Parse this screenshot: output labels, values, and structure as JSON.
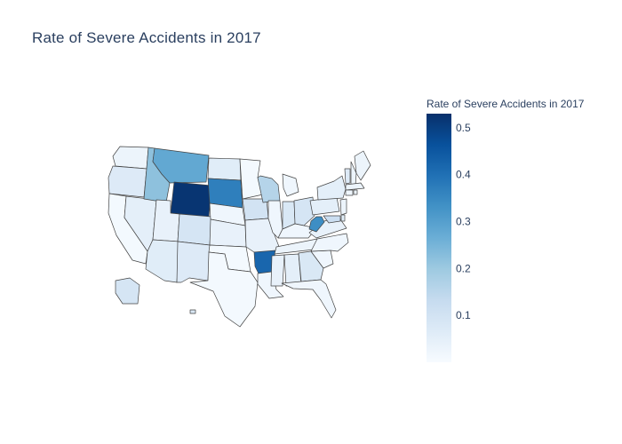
{
  "chart_data": {
    "type": "choropleth",
    "title": "Rate of Severe Accidents in 2017",
    "location_mode": "USA-states",
    "scope": "usa",
    "colorscale": "Blues",
    "colorbar": {
      "title": "Rate of Severe Accidents in 2017",
      "range": [
        0.0,
        0.53
      ],
      "tick_values": [
        0.1,
        0.2,
        0.3,
        0.4,
        0.5
      ],
      "tick_labels": [
        "0.1",
        "0.2",
        "0.3",
        "0.4",
        "0.5"
      ],
      "stops": [
        "#f7fbff",
        "#deebf7",
        "#c6dbef",
        "#9ecae1",
        "#6baed6",
        "#4292c6",
        "#2171b5",
        "#08519c",
        "#08306b"
      ]
    },
    "states": [
      {
        "state": "WA",
        "value": 0.03
      },
      {
        "state": "OR",
        "value": 0.07
      },
      {
        "state": "CA",
        "value": 0.01
      },
      {
        "state": "NV",
        "value": 0.05
      },
      {
        "state": "ID",
        "value": 0.22
      },
      {
        "state": "MT",
        "value": 0.28
      },
      {
        "state": "WY",
        "value": 0.52
      },
      {
        "state": "UT",
        "value": 0.04
      },
      {
        "state": "AZ",
        "value": 0.06
      },
      {
        "state": "CO",
        "value": 0.09
      },
      {
        "state": "NM",
        "value": 0.07
      },
      {
        "state": "ND",
        "value": 0.06
      },
      {
        "state": "SD",
        "value": 0.37
      },
      {
        "state": "NE",
        "value": 0.02
      },
      {
        "state": "KS",
        "value": 0.04
      },
      {
        "state": "OK",
        "value": 0.01
      },
      {
        "state": "TX",
        "value": 0.01
      },
      {
        "state": "MN",
        "value": 0.01
      },
      {
        "state": "IA",
        "value": 0.1
      },
      {
        "state": "MO",
        "value": 0.04
      },
      {
        "state": "AR",
        "value": 0.42
      },
      {
        "state": "LA",
        "value": 0.02
      },
      {
        "state": "WI",
        "value": 0.16
      },
      {
        "state": "IL",
        "value": 0.02
      },
      {
        "state": "MI",
        "value": 0.02
      },
      {
        "state": "IN",
        "value": 0.08
      },
      {
        "state": "OH",
        "value": 0.09
      },
      {
        "state": "KY",
        "value": 0.02
      },
      {
        "state": "TN",
        "value": 0.03
      },
      {
        "state": "MS",
        "value": 0.04
      },
      {
        "state": "AL",
        "value": 0.05
      },
      {
        "state": "GA",
        "value": 0.08
      },
      {
        "state": "FL",
        "value": 0.02
      },
      {
        "state": "SC",
        "value": 0.02
      },
      {
        "state": "NC",
        "value": 0.02
      },
      {
        "state": "VA",
        "value": 0.04
      },
      {
        "state": "WV",
        "value": 0.34
      },
      {
        "state": "PA",
        "value": 0.05
      },
      {
        "state": "NY",
        "value": 0.05
      },
      {
        "state": "VT",
        "value": 0.07
      },
      {
        "state": "NH",
        "value": 0.03
      },
      {
        "state": "ME",
        "value": 0.03
      },
      {
        "state": "MA",
        "value": 0.03
      },
      {
        "state": "CT",
        "value": 0.02
      },
      {
        "state": "RI",
        "value": 0.03
      },
      {
        "state": "NJ",
        "value": 0.03
      },
      {
        "state": "DE",
        "value": 0.06
      },
      {
        "state": "MD",
        "value": 0.12
      },
      {
        "state": "AK",
        "value": 0.09
      },
      {
        "state": "HI",
        "value": 0.08
      }
    ]
  }
}
